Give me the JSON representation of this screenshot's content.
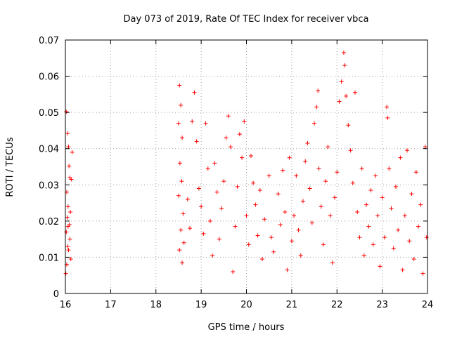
{
  "chart_data": {
    "type": "scatter",
    "title": "Day 073 of 2019, Rate Of TEC Index for receiver vbca",
    "xlabel": "GPS time / hours",
    "ylabel": "ROTI / TECUs",
    "xlim": [
      16,
      24
    ],
    "ylim": [
      0,
      0.07
    ],
    "xticks": [
      16,
      17,
      18,
      19,
      20,
      21,
      22,
      23,
      24
    ],
    "xtick_labels": [
      "16",
      "17",
      "18",
      "19",
      "20",
      "21",
      "22",
      "23",
      "24"
    ],
    "yticks": [
      0,
      0.01,
      0.02,
      0.03,
      0.04,
      0.05,
      0.06,
      0.07
    ],
    "ytick_labels": [
      "0",
      "0.01",
      "0.02",
      "0.03",
      "0.04",
      "0.05",
      "0.06",
      "0.07"
    ],
    "grid": true,
    "marker": "+",
    "color": "#ff0000",
    "series": [
      {
        "name": "ROTI",
        "points": [
          [
            16.02,
            0.0502
          ],
          [
            16.05,
            0.0442
          ],
          [
            16.07,
            0.0405
          ],
          [
            16.08,
            0.0352
          ],
          [
            16.1,
            0.032
          ],
          [
            16.03,
            0.028
          ],
          [
            16.06,
            0.024
          ],
          [
            16.04,
            0.021
          ],
          [
            16.09,
            0.019
          ],
          [
            16.02,
            0.017
          ],
          [
            16.1,
            0.015
          ],
          [
            16.05,
            0.013
          ],
          [
            16.07,
            0.012
          ],
          [
            16.12,
            0.0095
          ],
          [
            16.03,
            0.008
          ],
          [
            16.01,
            0.0055
          ],
          [
            16.06,
            0.0185
          ],
          [
            16.11,
            0.0225
          ],
          [
            16.15,
            0.039
          ],
          [
            16.13,
            0.0315
          ],
          [
            18.52,
            0.0575
          ],
          [
            18.55,
            0.052
          ],
          [
            18.5,
            0.047
          ],
          [
            18.58,
            0.043
          ],
          [
            18.53,
            0.036
          ],
          [
            18.57,
            0.031
          ],
          [
            18.5,
            0.027
          ],
          [
            18.6,
            0.022
          ],
          [
            18.55,
            0.0175
          ],
          [
            18.52,
            0.012
          ],
          [
            18.58,
            0.0085
          ],
          [
            18.62,
            0.014
          ],
          [
            18.7,
            0.026
          ],
          [
            18.75,
            0.018
          ],
          [
            18.8,
            0.0475
          ],
          [
            18.85,
            0.0555
          ],
          [
            18.9,
            0.042
          ],
          [
            18.95,
            0.029
          ],
          [
            19.0,
            0.024
          ],
          [
            19.05,
            0.0165
          ],
          [
            19.1,
            0.047
          ],
          [
            19.15,
            0.0345
          ],
          [
            19.2,
            0.02
          ],
          [
            19.25,
            0.0105
          ],
          [
            19.3,
            0.036
          ],
          [
            19.35,
            0.028
          ],
          [
            19.4,
            0.015
          ],
          [
            19.45,
            0.0235
          ],
          [
            19.5,
            0.031
          ],
          [
            19.55,
            0.043
          ],
          [
            19.6,
            0.049
          ],
          [
            19.65,
            0.0405
          ],
          [
            19.7,
            0.006
          ],
          [
            19.75,
            0.0185
          ],
          [
            19.8,
            0.0295
          ],
          [
            19.85,
            0.044
          ],
          [
            19.9,
            0.0375
          ],
          [
            19.95,
            0.0475
          ],
          [
            20.0,
            0.0215
          ],
          [
            20.05,
            0.0135
          ],
          [
            20.1,
            0.038
          ],
          [
            20.15,
            0.0305
          ],
          [
            20.2,
            0.0245
          ],
          [
            20.25,
            0.016
          ],
          [
            20.3,
            0.0285
          ],
          [
            20.35,
            0.0095
          ],
          [
            20.4,
            0.0205
          ],
          [
            20.5,
            0.0325
          ],
          [
            20.55,
            0.0155
          ],
          [
            20.6,
            0.0115
          ],
          [
            20.7,
            0.0275
          ],
          [
            20.75,
            0.019
          ],
          [
            20.8,
            0.034
          ],
          [
            20.85,
            0.0225
          ],
          [
            20.9,
            0.0065
          ],
          [
            20.95,
            0.0375
          ],
          [
            21.0,
            0.0145
          ],
          [
            21.05,
            0.0215
          ],
          [
            21.1,
            0.0325
          ],
          [
            21.15,
            0.0175
          ],
          [
            21.2,
            0.0105
          ],
          [
            21.25,
            0.0255
          ],
          [
            21.3,
            0.0365
          ],
          [
            21.35,
            0.0415
          ],
          [
            21.4,
            0.029
          ],
          [
            21.45,
            0.0195
          ],
          [
            21.5,
            0.047
          ],
          [
            21.55,
            0.0515
          ],
          [
            21.58,
            0.056
          ],
          [
            21.6,
            0.0345
          ],
          [
            21.65,
            0.024
          ],
          [
            21.7,
            0.0135
          ],
          [
            21.75,
            0.031
          ],
          [
            21.8,
            0.0405
          ],
          [
            21.85,
            0.0215
          ],
          [
            21.9,
            0.0085
          ],
          [
            21.95,
            0.0265
          ],
          [
            22.0,
            0.0335
          ],
          [
            22.05,
            0.053
          ],
          [
            22.1,
            0.0585
          ],
          [
            22.15,
            0.0665
          ],
          [
            22.17,
            0.063
          ],
          [
            22.2,
            0.0545
          ],
          [
            22.25,
            0.0465
          ],
          [
            22.3,
            0.0395
          ],
          [
            22.35,
            0.0305
          ],
          [
            22.4,
            0.0555
          ],
          [
            22.45,
            0.0225
          ],
          [
            22.5,
            0.0155
          ],
          [
            22.55,
            0.0345
          ],
          [
            22.6,
            0.0105
          ],
          [
            22.65,
            0.0245
          ],
          [
            22.7,
            0.0185
          ],
          [
            22.75,
            0.0285
          ],
          [
            22.8,
            0.0135
          ],
          [
            22.85,
            0.0325
          ],
          [
            22.9,
            0.0215
          ],
          [
            22.95,
            0.0075
          ],
          [
            23.0,
            0.0265
          ],
          [
            23.05,
            0.0155
          ],
          [
            23.1,
            0.0515
          ],
          [
            23.12,
            0.0485
          ],
          [
            23.15,
            0.0345
          ],
          [
            23.2,
            0.0235
          ],
          [
            23.25,
            0.0125
          ],
          [
            23.3,
            0.0295
          ],
          [
            23.35,
            0.0175
          ],
          [
            23.4,
            0.0375
          ],
          [
            23.45,
            0.0065
          ],
          [
            23.5,
            0.0215
          ],
          [
            23.55,
            0.0395
          ],
          [
            23.6,
            0.0145
          ],
          [
            23.65,
            0.0275
          ],
          [
            23.7,
            0.0095
          ],
          [
            23.75,
            0.0335
          ],
          [
            23.8,
            0.0185
          ],
          [
            23.85,
            0.0245
          ],
          [
            23.9,
            0.0055
          ],
          [
            23.95,
            0.0405
          ],
          [
            23.98,
            0.0155
          ]
        ]
      }
    ]
  }
}
